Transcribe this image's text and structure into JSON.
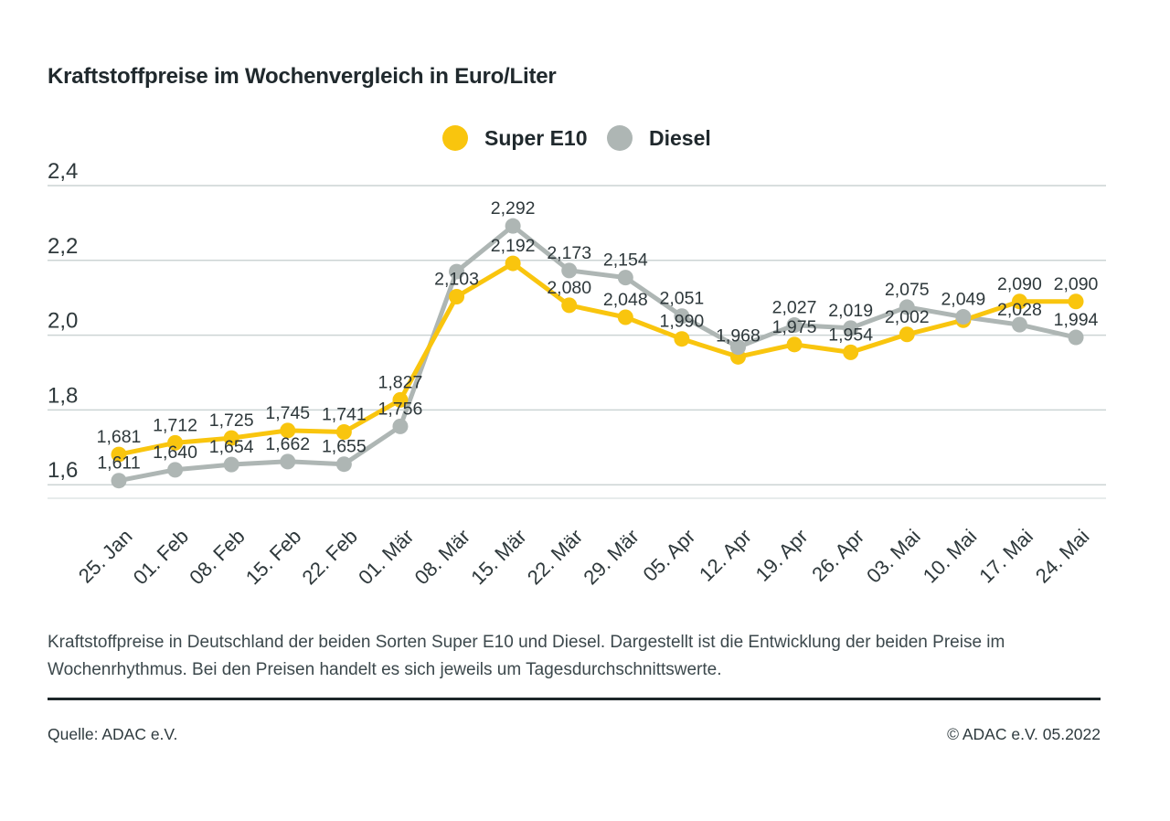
{
  "title": "Kraftstoffpreise im Wochenvergleich in Euro/Liter",
  "legend": {
    "position": "top-center",
    "items": [
      {
        "label": "Super E10",
        "color": "#F9C50E"
      },
      {
        "label": "Diesel",
        "color": "#AEB6B4"
      }
    ]
  },
  "chart_data": {
    "type": "line",
    "title": "Kraftstoffpreise im Wochenvergleich in Euro/Liter",
    "unit": "Euro/Liter",
    "decimal_style": "comma",
    "grid": true,
    "categories": [
      "25. Jan",
      "01. Feb",
      "08. Feb",
      "15. Feb",
      "22. Feb",
      "01. Mär",
      "08. Mär",
      "15. Mär",
      "22. Mär",
      "29. Mär",
      "05. Apr",
      "12. Apr",
      "19. Apr",
      "26. Apr",
      "03. Mai",
      "10. Mai",
      "17. Mai",
      "24. Mai"
    ],
    "series": [
      {
        "name": "Super E10",
        "color": "#F9C50E",
        "values": [
          1.681,
          1.712,
          1.725,
          1.745,
          1.741,
          1.827,
          2.103,
          2.192,
          2.08,
          2.048,
          1.99,
          1.942,
          1.975,
          1.954,
          2.002,
          2.04,
          2.09,
          2.09
        ],
        "labels": [
          "1,681",
          "1,712",
          "1,725",
          "1,745",
          "1,741",
          "1,827",
          "2,103",
          "2,192",
          "2,080",
          "2,048",
          "1,990",
          "",
          "1,975",
          "1,954",
          "2,002",
          "",
          "2,090",
          "2,090"
        ],
        "unlabeled_point_indices": [
          11,
          15
        ]
      },
      {
        "name": "Diesel",
        "color": "#AEB6B4",
        "values": [
          1.611,
          1.64,
          1.654,
          1.662,
          1.655,
          1.756,
          2.17,
          2.292,
          2.173,
          2.154,
          2.051,
          1.968,
          2.027,
          2.019,
          2.075,
          2.049,
          2.028,
          1.994
        ],
        "labels": [
          "1,611",
          "1,640",
          "1,654",
          "1,662",
          "1,655",
          "1,756",
          "",
          "2,292",
          "2,173",
          "2,154",
          "2,051",
          "1,968",
          "2,027",
          "2,019",
          "2,075",
          "2,049",
          "2,028",
          "1,994"
        ],
        "unlabeled_point_indices": [
          6
        ]
      }
    ],
    "yticks": {
      "labels": [
        "2,4",
        "2,2",
        "2,0",
        "1,8",
        "1,6"
      ],
      "values": [
        2.4,
        2.2,
        2.0,
        1.8,
        1.6
      ]
    },
    "ylim": [
      1.55,
      2.45
    ],
    "xlabel": "",
    "ylabel": ""
  },
  "caption": "Kraftstoffpreise in Deutschland der beiden Sorten Super E10 und Diesel. Dargestellt ist die Entwicklung der beiden Preise im Wochenrhythmus. Bei den Preisen handelt es sich jeweils um Tagesdurchschnittswerte.",
  "footer": {
    "source": "Quelle: ADAC e.V.",
    "copyright": "© ADAC e.V. 05.2022"
  },
  "colors": {
    "grid": "#ccd4d4",
    "grid_bottom": "#dfe6e6",
    "axis_text": "#2e383b",
    "value_label_text": "#2e383b",
    "title_text": "#20292d",
    "caption_text": "#3c484c",
    "separator": "#1d2629"
  }
}
